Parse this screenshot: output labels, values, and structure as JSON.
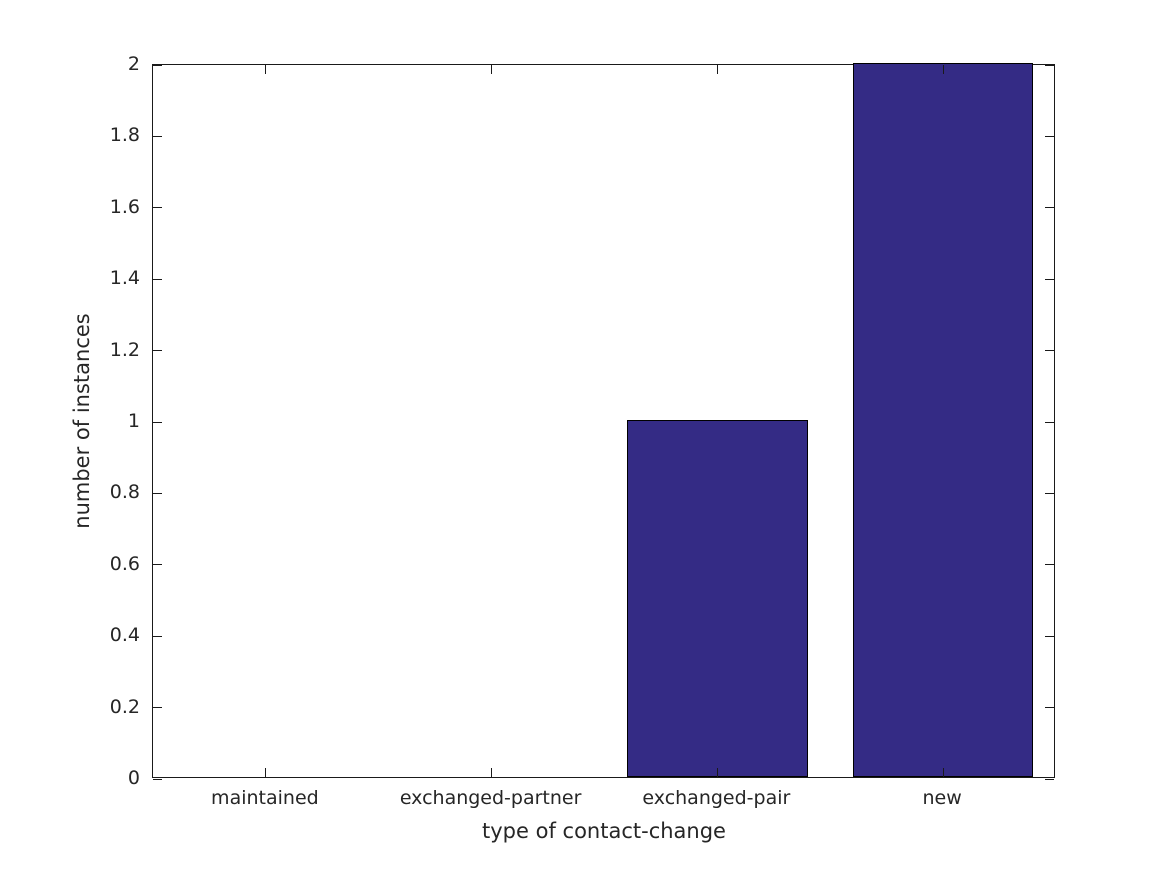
{
  "figure": {
    "background": "#ffffff",
    "axis_color": "#1a1a1a",
    "text_color": "#262626"
  },
  "chart_data": {
    "type": "bar",
    "title": "",
    "xlabel": "type of contact-change",
    "ylabel": "number of instances",
    "categories": [
      "maintained",
      "exchanged-partner",
      "exchanged-pair",
      "new"
    ],
    "values": [
      0,
      0,
      1,
      2
    ],
    "ylim": [
      0,
      2
    ],
    "yticks": [
      0,
      0.2,
      0.4,
      0.6,
      0.8,
      1,
      1.2,
      1.4,
      1.6,
      1.8,
      2
    ],
    "ytick_labels": [
      "0",
      "0.2",
      "0.4",
      "0.6",
      "0.8",
      "1",
      "1.2",
      "1.4",
      "1.6",
      "1.8",
      "2"
    ],
    "bar_color": "#342B85",
    "bar_edge_color": "#000000",
    "bar_width_fraction": 0.8,
    "grid": false,
    "legend": null,
    "tick_direction": "in",
    "box": true
  }
}
